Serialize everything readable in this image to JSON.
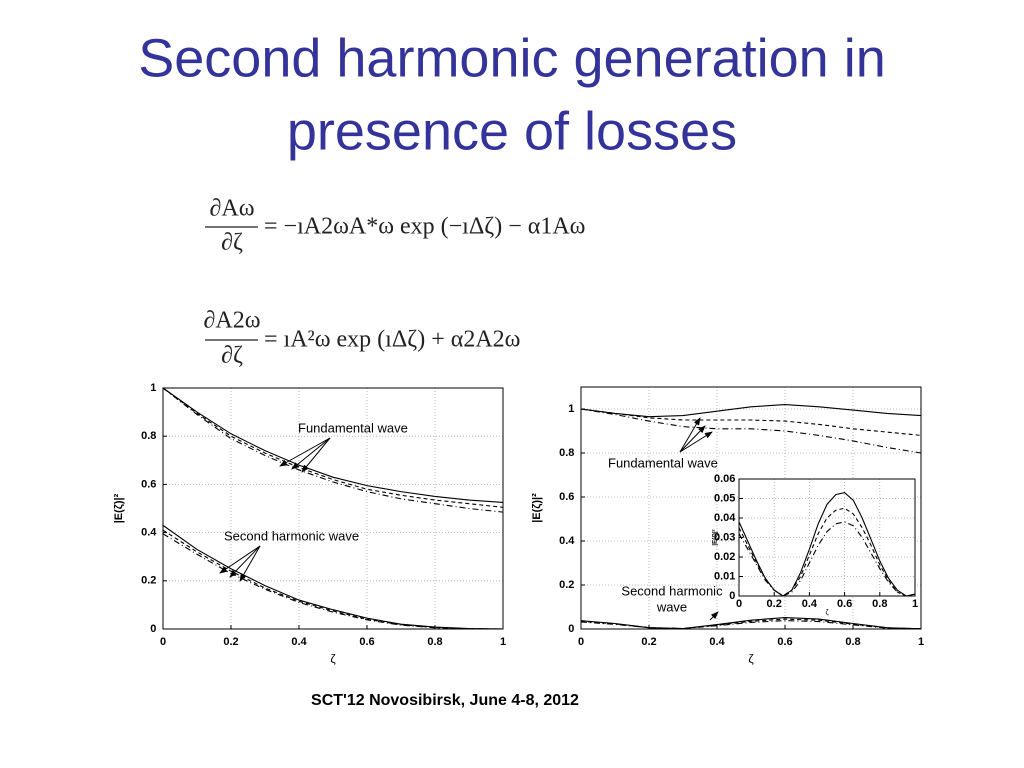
{
  "title": [
    "Second harmonic generation in",
    "presence of losses"
  ],
  "equations": [
    {
      "numerator": "∂Aω",
      "denominator": "∂ζ",
      "rhs": "= −ıA2ωA*ω exp (−ıΔζ) − α1Aω"
    },
    {
      "numerator": "∂A2ω",
      "denominator": "∂ζ",
      "rhs": "= ıA²ω exp (ıΔζ) + α2A2ω"
    }
  ],
  "footer": "SCT'12  Novosibirsk, June 4-8, 2012",
  "chart_data": [
    {
      "type": "line",
      "xlabel": "ζ",
      "ylabel": "|E(ζ)|²",
      "grid": true,
      "x": [
        0,
        0.1,
        0.2,
        0.3,
        0.4,
        0.5,
        0.6,
        0.7,
        0.8,
        0.9,
        1
      ],
      "xlim": [
        0,
        1
      ],
      "ylim": [
        0,
        1
      ],
      "xticks": [
        0,
        0.2,
        0.4,
        0.6,
        0.8,
        1
      ],
      "yticks": [
        0,
        0.2,
        0.4,
        0.6,
        0.8,
        1
      ],
      "series": [
        {
          "color": "#000000",
          "dash": "solid",
          "values": [
            1,
            0.9,
            0.81,
            0.74,
            0.68,
            0.63,
            0.595,
            0.57,
            0.55,
            0.535,
            0.525
          ]
        },
        {
          "color": "#000000",
          "dash": "dashed",
          "values": [
            1,
            0.895,
            0.8,
            0.73,
            0.67,
            0.62,
            0.58,
            0.555,
            0.535,
            0.52,
            0.505
          ]
        },
        {
          "color": "#000000",
          "dash": "dashdot",
          "values": [
            1,
            0.89,
            0.79,
            0.72,
            0.66,
            0.61,
            0.57,
            0.54,
            0.52,
            0.5,
            0.485
          ]
        },
        {
          "color": "#000000",
          "dash": "solid",
          "values": [
            0.43,
            0.33,
            0.25,
            0.18,
            0.12,
            0.08,
            0.045,
            0.02,
            0.008,
            0.002,
            0
          ]
        },
        {
          "color": "#000000",
          "dash": "dashed",
          "values": [
            0.41,
            0.32,
            0.24,
            0.17,
            0.115,
            0.075,
            0.04,
            0.018,
            0.006,
            0.001,
            0
          ]
        },
        {
          "color": "#000000",
          "dash": "dashdot",
          "values": [
            0.395,
            0.31,
            0.23,
            0.165,
            0.11,
            0.07,
            0.038,
            0.016,
            0.005,
            0.001,
            0
          ]
        }
      ],
      "annotations": [
        {
          "text": [
            "Fundamental wave"
          ]
        },
        {
          "text": [
            "Second harmonic wave"
          ]
        }
      ]
    },
    {
      "type": "line",
      "xlabel": "ζ",
      "ylabel": "|E(ζ)|²",
      "grid": true,
      "x": [
        0,
        0.1,
        0.2,
        0.3,
        0.4,
        0.5,
        0.6,
        0.7,
        0.8,
        0.9,
        1
      ],
      "xlim": [
        0,
        1
      ],
      "ylim": [
        0,
        1.1
      ],
      "xticks": [
        0,
        0.2,
        0.4,
        0.6,
        0.8,
        1
      ],
      "yticks": [
        0,
        0.2,
        0.4,
        0.6,
        0.8,
        1
      ],
      "series": [
        {
          "color": "#000000",
          "dash": "solid",
          "values": [
            1,
            0.98,
            0.965,
            0.97,
            0.99,
            1.01,
            1.02,
            1.01,
            0.995,
            0.98,
            0.97
          ]
        },
        {
          "color": "#000000",
          "dash": "dashed",
          "values": [
            1,
            0.98,
            0.96,
            0.95,
            0.95,
            0.95,
            0.945,
            0.93,
            0.91,
            0.895,
            0.88
          ]
        },
        {
          "color": "#000000",
          "dash": "dashdot",
          "values": [
            1,
            0.975,
            0.945,
            0.92,
            0.91,
            0.91,
            0.9,
            0.88,
            0.855,
            0.825,
            0.8
          ]
        },
        {
          "color": "#000000",
          "dash": "solid",
          "values": [
            0.038,
            0.025,
            0.006,
            0.002,
            0.02,
            0.04,
            0.052,
            0.045,
            0.025,
            0.006,
            0.001
          ]
        },
        {
          "color": "#000000",
          "dash": "dashed",
          "values": [
            0.035,
            0.023,
            0.006,
            0.002,
            0.017,
            0.035,
            0.045,
            0.04,
            0.022,
            0.005,
            0.001
          ]
        },
        {
          "color": "#000000",
          "dash": "dashdot",
          "values": [
            0.032,
            0.021,
            0.006,
            0.002,
            0.015,
            0.03,
            0.038,
            0.034,
            0.019,
            0.004,
            0.001
          ]
        }
      ],
      "annotations": [
        {
          "text": [
            "Fundamental wave"
          ]
        },
        {
          "text": [
            "Second harmonic",
            "wave"
          ]
        }
      ]
    },
    {
      "type": "line",
      "xlabel": "ζ",
      "ylabel": "|E(ζ)|²",
      "grid": true,
      "x": [
        0,
        0.05,
        0.1,
        0.15,
        0.2,
        0.25,
        0.3,
        0.35,
        0.4,
        0.45,
        0.5,
        0.55,
        0.6,
        0.65,
        0.7,
        0.75,
        0.8,
        0.85,
        0.9,
        0.95,
        1
      ],
      "xlim": [
        0,
        1
      ],
      "ylim": [
        0,
        0.06
      ],
      "xticks": [
        0,
        0.2,
        0.4,
        0.6,
        0.8,
        1
      ],
      "yticks": [
        0,
        0.01,
        0.02,
        0.03,
        0.04,
        0.05,
        0.06
      ],
      "series": [
        {
          "color": "#000000",
          "dash": "solid",
          "values": [
            0.038,
            0.028,
            0.018,
            0.009,
            0.003,
            0,
            0.003,
            0.012,
            0.024,
            0.037,
            0.047,
            0.052,
            0.053,
            0.049,
            0.04,
            0.029,
            0.018,
            0.009,
            0.003,
            0,
            0.001
          ]
        },
        {
          "color": "#000000",
          "dash": "dashed",
          "values": [
            0.035,
            0.026,
            0.017,
            0.009,
            0.003,
            0,
            0.003,
            0.01,
            0.021,
            0.032,
            0.04,
            0.044,
            0.045,
            0.042,
            0.035,
            0.026,
            0.016,
            0.008,
            0.002,
            0,
            0
          ]
        },
        {
          "color": "#000000",
          "dash": "dashdot",
          "values": [
            0.032,
            0.024,
            0.016,
            0.008,
            0.003,
            0,
            0.002,
            0.008,
            0.017,
            0.026,
            0.033,
            0.037,
            0.038,
            0.036,
            0.03,
            0.022,
            0.014,
            0.007,
            0.002,
            0,
            0
          ]
        }
      ],
      "annotations": []
    }
  ]
}
